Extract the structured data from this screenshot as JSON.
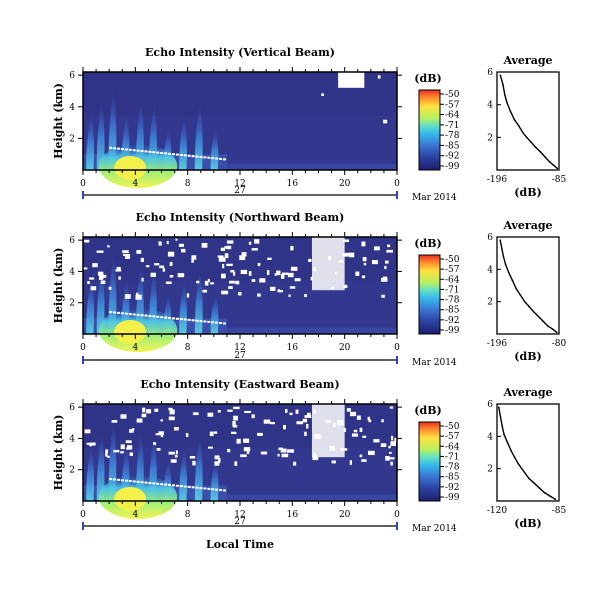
{
  "chart_data": [
    {
      "type": "heatmap",
      "title": "Echo Intensity (Vertical Beam)",
      "ylabel": "Height (km)",
      "x_ticks": [
        "0",
        "4",
        "8",
        "12",
        "16",
        "20",
        "0"
      ],
      "y_ticks": [
        "2",
        "4",
        "6"
      ],
      "xlim": [
        0,
        24
      ],
      "ylim": [
        0,
        6.2
      ],
      "date_day": "27",
      "date_month_year": "Mar 2014",
      "colorbar": {
        "label": "(dB)",
        "ticks": [
          "-50",
          "-57",
          "-64",
          "-71",
          "-78",
          "-85",
          "-92",
          "-99"
        ],
        "range": [
          -99,
          -50
        ]
      },
      "profile": {
        "title": "Average",
        "xlabel": "(dB)",
        "x_ticks": [
          "-196",
          "-85"
        ],
        "y_ticks": [
          "2",
          "4",
          "6"
        ],
        "xlim": [
          -196,
          -85
        ],
        "ylim": [
          0,
          6
        ],
        "x": [
          -190,
          -185,
          -182,
          -178,
          -172,
          -165,
          -157,
          -150,
          -143,
          -135,
          -127,
          -118,
          -110,
          -102,
          -95,
          -88
        ],
        "y": [
          5.8,
          5.2,
          4.6,
          4.1,
          3.6,
          3.1,
          2.7,
          2.3,
          2.0,
          1.7,
          1.4,
          1.1,
          0.8,
          0.5,
          0.3,
          0.1
        ]
      }
    },
    {
      "type": "heatmap",
      "title": "Echo Intensity (Northward Beam)",
      "ylabel": "Height (km)",
      "x_ticks": [
        "0",
        "4",
        "8",
        "12",
        "16",
        "20",
        "0"
      ],
      "y_ticks": [
        "2",
        "4",
        "6"
      ],
      "xlim": [
        0,
        24
      ],
      "ylim": [
        0,
        6.2
      ],
      "date_day": "27",
      "date_month_year": "Mar 2014",
      "colorbar": {
        "label": "(dB)",
        "ticks": [
          "-50",
          "-57",
          "-64",
          "-71",
          "-78",
          "-85",
          "-92",
          "-99"
        ],
        "range": [
          -99,
          -50
        ]
      },
      "profile": {
        "title": "Average",
        "xlabel": "(dB)",
        "x_ticks": [
          "-196",
          "-80"
        ],
        "y_ticks": [
          "2",
          "4",
          "6"
        ],
        "xlim": [
          -196,
          -80
        ],
        "ylim": [
          0,
          6
        ],
        "x": [
          -190,
          -187,
          -184,
          -180,
          -174,
          -167,
          -160,
          -152,
          -144,
          -136,
          -128,
          -119,
          -110,
          -101,
          -92,
          -84
        ],
        "y": [
          5.8,
          5.3,
          4.8,
          4.3,
          3.8,
          3.3,
          2.8,
          2.4,
          2.0,
          1.7,
          1.4,
          1.1,
          0.8,
          0.5,
          0.3,
          0.1
        ]
      }
    },
    {
      "type": "heatmap",
      "title": "Echo Intensity (Eastward Beam)",
      "ylabel": "Height (km)",
      "xlabel": "Local Time",
      "x_ticks": [
        "0",
        "4",
        "8",
        "12",
        "16",
        "20",
        "0"
      ],
      "y_ticks": [
        "2",
        "4",
        "6"
      ],
      "xlim": [
        0,
        24
      ],
      "ylim": [
        0,
        6.2
      ],
      "date_day": "27",
      "date_month_year": "Mar 2014",
      "colorbar": {
        "label": "(dB)",
        "ticks": [
          "-50",
          "-57",
          "-64",
          "-71",
          "-78",
          "-85",
          "-92",
          "-99"
        ],
        "range": [
          -99,
          -50
        ]
      },
      "profile": {
        "title": "Average",
        "xlabel": "(dB)",
        "x_ticks": [
          "-120",
          "-85"
        ],
        "y_ticks": [
          "2",
          "4",
          "6"
        ],
        "xlim": [
          -120,
          -85
        ],
        "ylim": [
          0,
          6
        ],
        "x": [
          -119,
          -118,
          -117,
          -116,
          -114,
          -112,
          -110,
          -108,
          -106,
          -104,
          -102,
          -99,
          -96,
          -93,
          -90,
          -87
        ],
        "y": [
          5.8,
          5.2,
          4.6,
          4.1,
          3.6,
          3.1,
          2.7,
          2.3,
          2.0,
          1.7,
          1.4,
          1.1,
          0.8,
          0.5,
          0.3,
          0.1
        ]
      }
    }
  ]
}
